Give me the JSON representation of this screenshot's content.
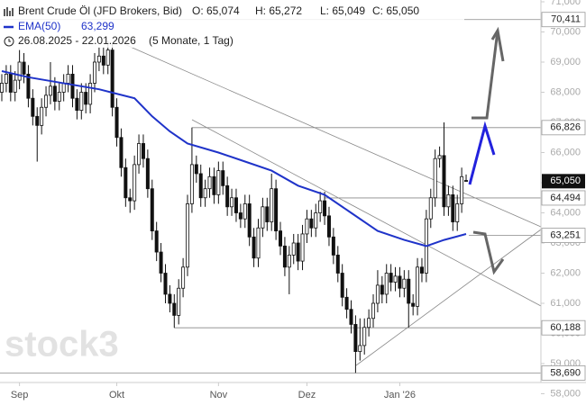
{
  "chart_data": {
    "type": "candlestick",
    "header": {
      "title": "Brent Crude Öl (JFD Brokers, Bid)",
      "ohlc": [
        "O: 65,074",
        "H: 65,272",
        "L: 65,049",
        "C: 65,050"
      ],
      "indicator": "EMA(50)",
      "indicator_value": "63,299",
      "range": "26.08.2025 - 22.01.2026",
      "period": "(5 Monate, 1 Tag)"
    },
    "watermark": "stock3",
    "xlim": [
      0,
      122
    ],
    "xticks": [
      {
        "value": 4,
        "label": "Sep"
      },
      {
        "value": 26,
        "label": "Okt"
      },
      {
        "value": 49,
        "label": "Nov"
      },
      {
        "value": 69,
        "label": "Dez"
      },
      {
        "value": 90,
        "label": "Jan '26"
      }
    ],
    "ylim": [
      58,
      71
    ],
    "yticks": [
      {
        "value": 58,
        "label": "58,000"
      },
      {
        "value": 59,
        "label": "59,000"
      },
      {
        "value": 60,
        "label": "60,000"
      },
      {
        "value": 61,
        "label": "61,000"
      },
      {
        "value": 62,
        "label": "62,000"
      },
      {
        "value": 63,
        "label": "63,000"
      },
      {
        "value": 64,
        "label": "64,000"
      },
      {
        "value": 65,
        "label": "65,000"
      },
      {
        "value": 66,
        "label": "66,000"
      },
      {
        "value": 67,
        "label": "67,000"
      },
      {
        "value": 68,
        "label": "68,000"
      },
      {
        "value": 69,
        "label": "69,000"
      },
      {
        "value": 70,
        "label": "70,000"
      },
      {
        "value": 71,
        "label": "71,000"
      }
    ],
    "open": [
      68.0,
      68.3,
      68.6,
      68.0,
      68.4,
      69.0,
      68.6,
      67.8,
      67.2,
      66.9,
      67.5,
      67.9,
      68.2,
      67.7,
      68.0,
      68.3,
      68.6,
      67.8,
      67.4,
      68.0,
      67.6,
      68.3,
      69.0,
      69.2,
      68.9,
      69.4,
      67.5,
      66.5,
      65.5,
      64.5,
      64.4,
      65.6,
      66.3,
      65.8,
      64.8,
      63.4,
      62.7,
      62.0,
      61.3,
      61.0,
      60.6,
      61.5,
      62.2,
      64.3,
      65.6,
      65.3,
      64.5,
      64.8,
      65.2,
      64.6,
      65.4,
      64.9,
      64.2,
      64.5,
      64.0,
      63.8,
      64.3,
      63.2,
      62.5,
      63.5,
      64.2,
      63.7,
      64.8,
      63.4,
      62.9,
      62.2,
      62.6,
      63.0,
      62.4,
      63.3,
      63.8,
      63.5,
      64.0,
      64.4,
      63.9,
      63.2,
      62.6,
      62.0,
      61.2,
      60.8,
      60.3,
      59.4,
      59.6,
      60.2,
      60.5,
      61.0,
      61.6,
      61.3,
      62.0,
      61.7,
      61.9,
      61.5,
      61.8,
      61.0,
      60.9,
      62.2,
      62.0,
      63.8,
      64.5,
      65.8,
      65.9,
      64.2,
      64.6,
      63.7,
      64.3,
      65.074
    ],
    "high": [
      68.6,
      68.9,
      68.9,
      68.7,
      69.4,
      69.3,
      68.9,
      68.1,
      67.5,
      67.8,
      68.2,
      69.0,
      68.5,
      68.3,
      68.6,
      68.9,
      68.9,
      68.1,
      68.3,
      68.3,
      68.6,
      69.3,
      69.5,
      69.5,
      69.7,
      69.6,
      67.8,
      66.8,
      65.8,
      64.8,
      65.9,
      66.6,
      66.6,
      66.1,
      65.1,
      63.7,
      63.0,
      62.3,
      61.6,
      61.3,
      61.8,
      62.5,
      64.6,
      66.83,
      65.9,
      65.6,
      65.1,
      65.5,
      65.5,
      65.7,
      65.7,
      65.2,
      64.8,
      64.8,
      64.3,
      64.6,
      64.6,
      63.5,
      63.8,
      64.5,
      64.5,
      65.3,
      65.1,
      63.7,
      63.2,
      62.9,
      63.3,
      63.3,
      63.6,
      64.1,
      64.1,
      64.3,
      64.7,
      64.7,
      64.2,
      63.5,
      62.9,
      62.3,
      61.5,
      61.1,
      60.6,
      60.5,
      60.5,
      60.8,
      61.3,
      62.1,
      61.9,
      62.3,
      62.3,
      62.2,
      62.2,
      62.1,
      62.1,
      61.3,
      62.5,
      62.5,
      64.1,
      64.8,
      66.1,
      66.2,
      67.0,
      64.9,
      64.9,
      64.6,
      65.5,
      65.272
    ],
    "low": [
      67.7,
      68.0,
      67.7,
      67.7,
      68.1,
      68.3,
      67.5,
      66.9,
      65.7,
      66.6,
      67.2,
      67.6,
      67.4,
      67.4,
      67.7,
      68.0,
      67.5,
      67.1,
      67.1,
      67.3,
      67.3,
      68.0,
      68.7,
      68.6,
      68.6,
      67.2,
      66.2,
      65.2,
      64.2,
      64.0,
      64.1,
      65.3,
      65.5,
      64.5,
      63.1,
      62.4,
      61.7,
      61.0,
      60.7,
      60.19,
      60.3,
      61.2,
      61.9,
      64.0,
      65.0,
      64.2,
      64.2,
      64.5,
      64.3,
      64.3,
      64.6,
      63.9,
      63.9,
      63.7,
      63.5,
      63.5,
      62.9,
      62.2,
      62.2,
      63.2,
      63.4,
      63.4,
      63.1,
      62.6,
      61.9,
      61.3,
      62.3,
      62.1,
      62.1,
      63.0,
      63.2,
      63.2,
      63.7,
      63.6,
      62.9,
      62.3,
      61.7,
      60.9,
      60.5,
      60.0,
      58.69,
      59.1,
      59.3,
      59.9,
      60.2,
      60.7,
      61.0,
      61.0,
      61.4,
      61.4,
      61.2,
      61.2,
      60.2,
      60.6,
      60.6,
      61.7,
      61.7,
      63.5,
      64.2,
      65.5,
      63.9,
      63.9,
      63.4,
      63.4,
      64.0,
      65.049
    ],
    "close": [
      68.3,
      68.6,
      68.0,
      68.4,
      69.0,
      68.6,
      67.8,
      67.2,
      66.9,
      67.5,
      67.9,
      68.2,
      67.7,
      68.0,
      68.3,
      68.6,
      67.8,
      67.4,
      68.0,
      67.6,
      68.3,
      69.0,
      69.2,
      68.9,
      69.4,
      67.5,
      66.5,
      65.5,
      64.5,
      64.4,
      65.6,
      66.3,
      65.8,
      64.8,
      63.4,
      62.7,
      62.0,
      61.3,
      61.0,
      60.6,
      61.5,
      62.2,
      64.3,
      65.6,
      65.3,
      64.5,
      64.8,
      65.2,
      64.6,
      65.4,
      64.9,
      64.2,
      64.5,
      64.0,
      63.8,
      64.3,
      63.2,
      62.5,
      63.5,
      64.2,
      63.7,
      64.8,
      63.4,
      62.9,
      62.2,
      62.6,
      63.0,
      62.4,
      63.3,
      63.8,
      63.5,
      64.0,
      64.4,
      63.9,
      63.2,
      62.6,
      62.0,
      61.2,
      60.8,
      60.3,
      59.4,
      59.6,
      60.2,
      60.5,
      61.0,
      61.6,
      61.3,
      62.0,
      61.7,
      61.9,
      61.5,
      61.8,
      61.0,
      60.9,
      62.2,
      62.0,
      63.8,
      64.5,
      65.8,
      65.9,
      64.2,
      64.6,
      63.7,
      64.3,
      65.2,
      65.05
    ],
    "ema": {
      "name": "EMA(50)",
      "color": "#1f33c9",
      "x": [
        0,
        6,
        22,
        30,
        34,
        38,
        42,
        49,
        55,
        61,
        67,
        73,
        79,
        85,
        91,
        96,
        100,
        105
      ],
      "values": [
        68.7,
        68.5,
        68.1,
        67.8,
        67.2,
        66.7,
        66.3,
        66.0,
        65.7,
        65.4,
        64.9,
        64.6,
        64.0,
        63.4,
        63.1,
        62.9,
        63.1,
        63.299
      ]
    },
    "levels": [
      {
        "value": 70.411,
        "label": "70,411"
      },
      {
        "value": 66.826,
        "label": "66,826"
      },
      {
        "value": 64.494,
        "label": "64,494"
      },
      {
        "value": 63.251,
        "label": "63,251"
      },
      {
        "value": 60.188,
        "label": "60,188"
      },
      {
        "value": 58.69,
        "label": "58,690"
      }
    ],
    "current": {
      "value": 65.05,
      "label": "65,050"
    }
  }
}
